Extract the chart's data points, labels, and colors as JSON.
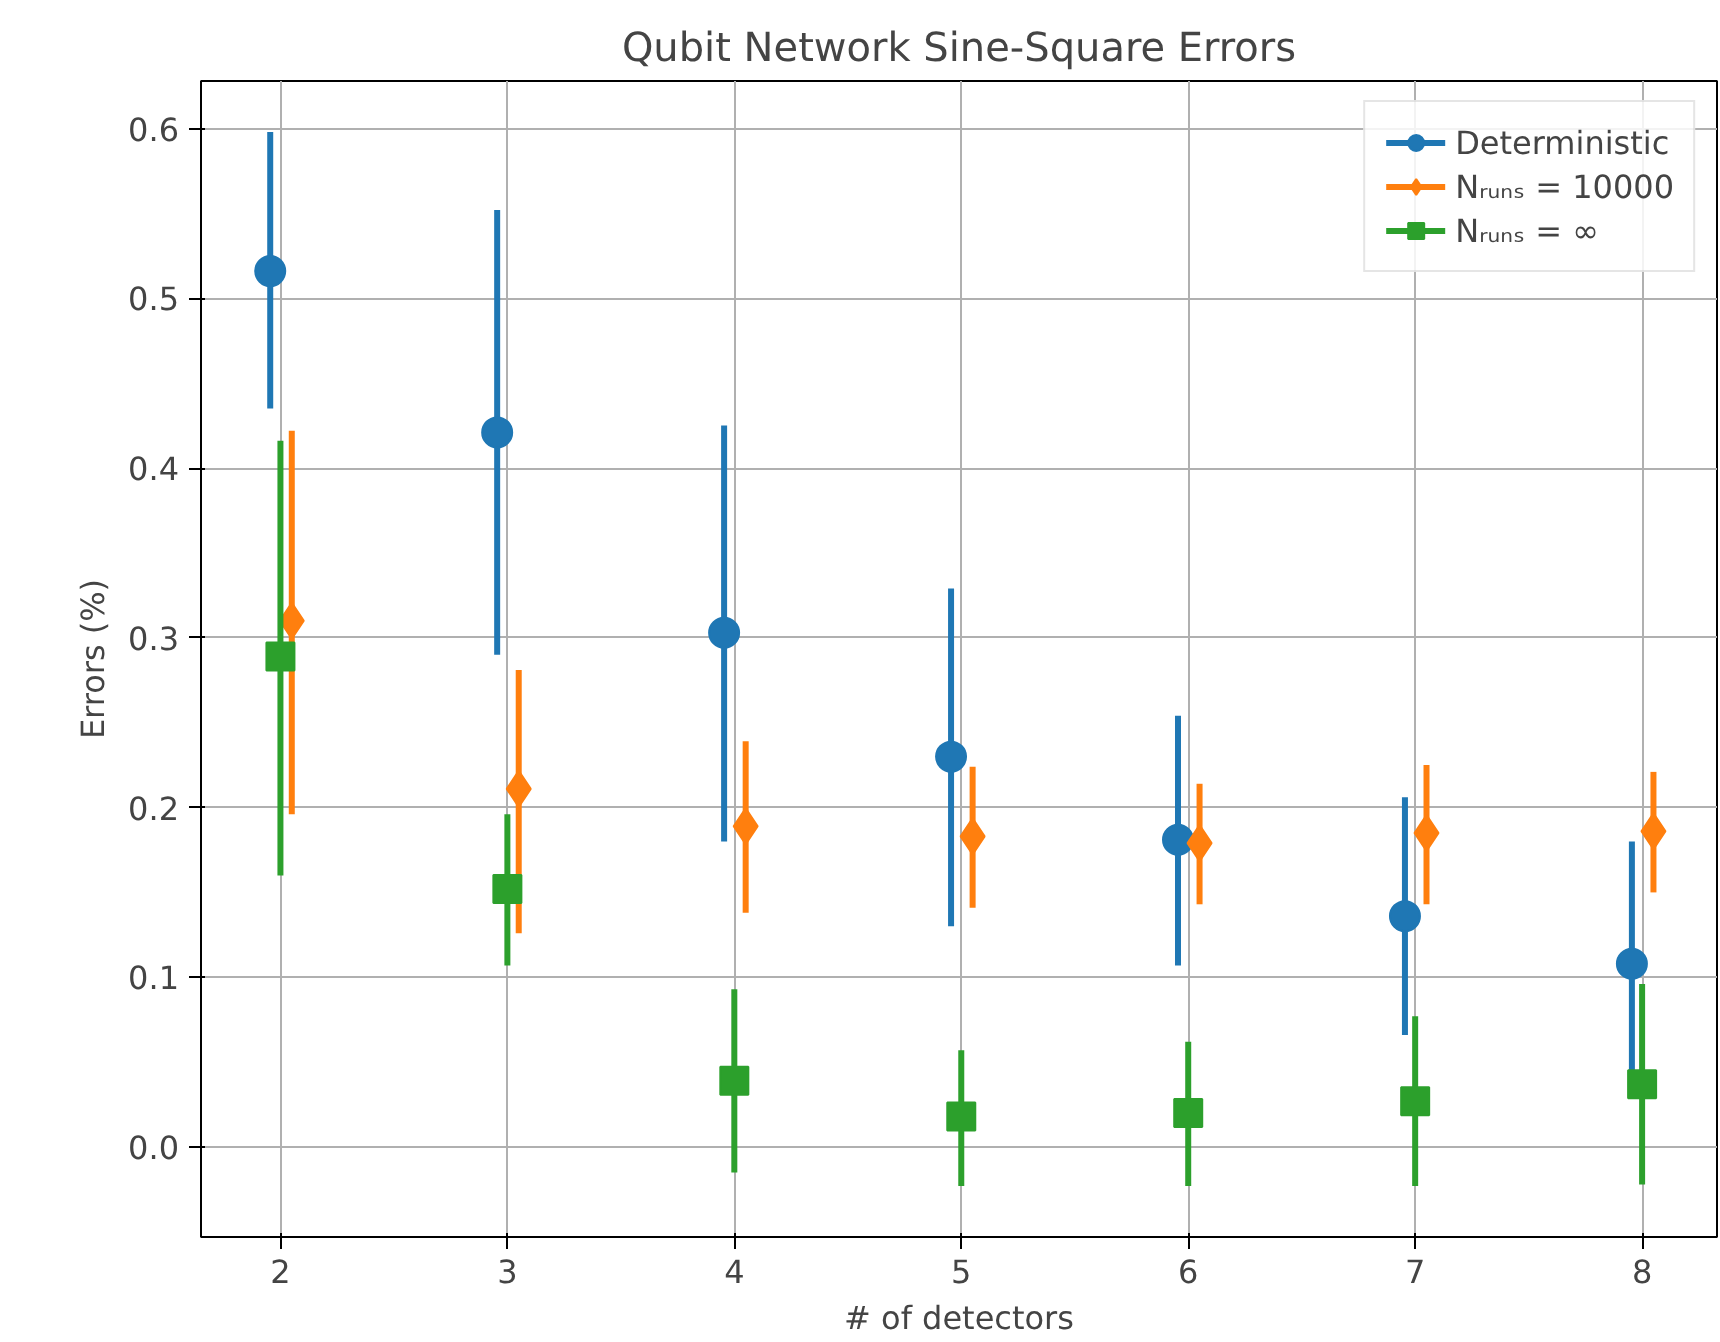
{
  "chart_data": {
    "type": "scatter",
    "title": "Qubit Network Sine-Square Errors",
    "xlabel": "# of detectors",
    "ylabel": "Errors (%)",
    "xlim": [
      1.65,
      8.33
    ],
    "ylim": [
      -0.053,
      0.628
    ],
    "xticks": [
      2,
      3,
      4,
      5,
      6,
      7,
      8
    ],
    "yticks": [
      {
        "value": 0,
        "label": "0.0"
      },
      0.1,
      0.2,
      0.3,
      0.4,
      0.5,
      0.6
    ],
    "grid": true,
    "legend": "top right",
    "series": [
      {
        "name": "Deterministic",
        "color": "#1f77b4",
        "marker": "circle",
        "x": [
          1.955,
          2.955,
          3.955,
          4.955,
          5.955,
          6.955,
          7.955
        ],
        "values": [
          0.516,
          0.421,
          0.303,
          0.23,
          0.181,
          0.136,
          0.108
        ],
        "errors": [
          [
            0.435,
            0.598
          ],
          [
            0.29,
            0.552
          ],
          [
            0.18,
            0.425
          ],
          [
            0.13,
            0.329
          ],
          [
            0.107,
            0.254
          ],
          [
            0.066,
            0.206
          ],
          [
            0.035,
            0.18
          ]
        ]
      },
      {
        "name": "Nᵣᵤₙₛ = 10000",
        "color": "#ff7f0e",
        "marker": "diamond",
        "x": [
          2.05,
          3.05,
          4.05,
          5.05,
          6.05,
          7.05,
          8.05
        ],
        "values": [
          0.31,
          0.211,
          0.189,
          0.183,
          0.179,
          0.185,
          0.186
        ],
        "errors": [
          [
            0.196,
            0.422
          ],
          [
            0.126,
            0.281
          ],
          [
            0.138,
            0.239
          ],
          [
            0.141,
            0.224
          ],
          [
            0.143,
            0.214
          ],
          [
            0.143,
            0.225
          ],
          [
            0.15,
            0.221
          ]
        ]
      },
      {
        "name": "Nᵣᵤₙₛ = ∞",
        "color": "#2ca02c",
        "marker": "square",
        "x": [
          2,
          3,
          4,
          5,
          6,
          7,
          8
        ],
        "values": [
          0.289,
          0.152,
          0.039,
          0.018,
          0.02,
          0.027,
          0.037
        ],
        "errors": [
          [
            0.16,
            0.416
          ],
          [
            0.107,
            0.196
          ],
          [
            -0.015,
            0.093
          ],
          [
            -0.023,
            0.057
          ],
          [
            -0.023,
            0.062
          ],
          [
            -0.023,
            0.077
          ],
          [
            -0.022,
            0.096
          ]
        ]
      }
    ]
  }
}
